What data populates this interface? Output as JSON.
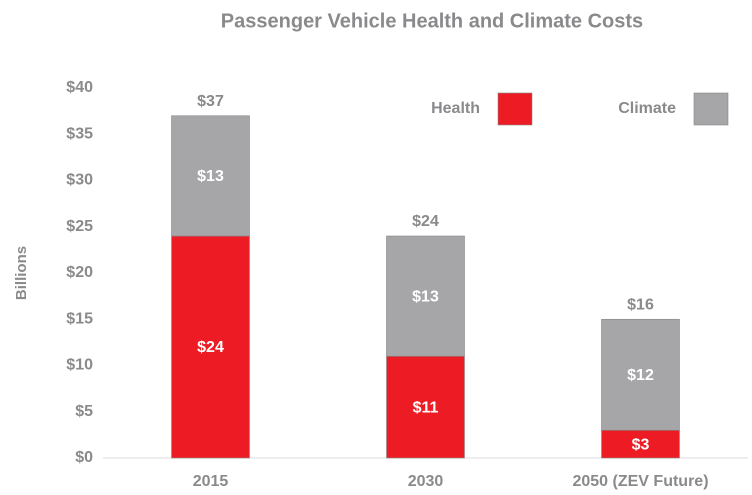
{
  "chart_data": {
    "type": "stacked_bar",
    "title": "Passenger Vehicle Health and Climate Costs",
    "y_label": "Billions",
    "categories": [
      "2015",
      "2030",
      "2050 (ZEV Future)"
    ],
    "series": [
      {
        "name": "Health",
        "color": "#ed1c24",
        "values": [
          24,
          11,
          3
        ],
        "value_labels": [
          "$24",
          "$11",
          "$3"
        ]
      },
      {
        "name": "Climate",
        "color": "#a6a6a9",
        "values": [
          13,
          13,
          12
        ],
        "value_labels": [
          "$13",
          "$13",
          "$12"
        ]
      }
    ],
    "totals": {
      "values": [
        37,
        24,
        16
      ],
      "value_labels": [
        "$37",
        "$24",
        "$16"
      ]
    },
    "ylim": [
      0,
      40
    ],
    "yticks": [
      {
        "value": 0,
        "label": "$0"
      },
      {
        "value": 5,
        "label": "$5"
      },
      {
        "value": 10,
        "label": "$10"
      },
      {
        "value": 15,
        "label": "$15"
      },
      {
        "value": 20,
        "label": "$20"
      },
      {
        "value": 25,
        "label": "$25"
      },
      {
        "value": 30,
        "label": "$30"
      },
      {
        "value": 35,
        "label": "$35"
      },
      {
        "value": 40,
        "label": "$40"
      }
    ],
    "legend": "top-right"
  }
}
